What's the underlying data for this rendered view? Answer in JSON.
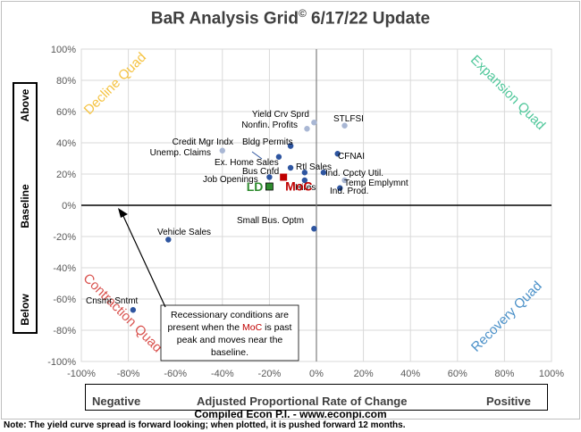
{
  "page": {
    "title_main": "BaR Analysis Grid",
    "title_symbol": "©",
    "title_date": " 6/17/22 Update",
    "y_above": "Above",
    "y_baseline": "Baseline",
    "y_below": "Below",
    "x_negative": "Negative",
    "x_center": "Adjusted Proportional Rate of Change",
    "x_positive": "Positive",
    "compiled": "Compiled Econ P.I. - www.econpi.com",
    "note": "Note: The yield curve spread is forward looking; when plotted, it is pushed forward 12 months."
  },
  "chart_data": {
    "type": "scatter",
    "title": "BaR Analysis Grid© 6/17/22 Update",
    "xlabel": "Adjusted Proportional Rate of Change",
    "ylabel": "Above / Baseline / Below",
    "xlim": [
      -100,
      100
    ],
    "ylim": [
      -100,
      100
    ],
    "x_ticks": [
      "-100%",
      "-80%",
      "-60%",
      "-40%",
      "-20%",
      "0%",
      "20%",
      "40%",
      "60%",
      "80%",
      "100%"
    ],
    "y_ticks": [
      "100%",
      "80%",
      "60%",
      "40%",
      "20%",
      "0%",
      "-20%",
      "-40%",
      "-60%",
      "-80%",
      "-100%"
    ],
    "grid": true,
    "quadrants": [
      {
        "label": "Decline Quad",
        "color": "#f5c342"
      },
      {
        "label": "Expansion Quad",
        "color": "#4fc79a"
      },
      {
        "label": "Contraction Quad",
        "color": "#d9534f"
      },
      {
        "label": "Recovery Quad",
        "color": "#4a90c8"
      }
    ],
    "points": [
      {
        "label": "Yield Crv Sprd",
        "x": -1,
        "y": 53,
        "color": "#a9b7d4"
      },
      {
        "label": "Nonfin. Profits",
        "x": -4,
        "y": 49,
        "color": "#a9b7d4"
      },
      {
        "label": "STLFSI",
        "x": 12,
        "y": 51,
        "color": "#a9b7d4"
      },
      {
        "label": "Credit Mgr Indx",
        "x": -11,
        "y": 38,
        "color": "#2e55a0"
      },
      {
        "label": "Bldg Permits",
        "x": -11,
        "y": 38,
        "color": "#2e55a0"
      },
      {
        "label": "Unemp. Claims",
        "x": -40,
        "y": 35,
        "color": "#a9b7d4"
      },
      {
        "label": "CFNAI",
        "x": 9,
        "y": 33,
        "color": "#2e55a0"
      },
      {
        "label": "Ex. Home Sales",
        "x": -16,
        "y": 31,
        "color": "#2e55a0"
      },
      {
        "label": "Bus Cnfd",
        "x": -11,
        "y": 24,
        "color": "#2e55a0"
      },
      {
        "label": "Rtl Sales",
        "x": -5,
        "y": 21,
        "color": "#2e55a0"
      },
      {
        "label": "Ind. Cpcty Util.",
        "x": 3,
        "y": 21,
        "color": "#2e55a0"
      },
      {
        "label": "Temp Emplymnt",
        "x": 12,
        "y": 16,
        "color": "#a9b7d4"
      },
      {
        "label": "Ind. Prod.",
        "x": 10,
        "y": 11,
        "color": "#2e55a0"
      },
      {
        "label": "Job Openings",
        "x": -20,
        "y": 18,
        "color": "#2e55a0"
      },
      {
        "label": "Hires",
        "x": -5,
        "y": 16,
        "color": "#2e55a0"
      },
      {
        "label": "Small Bus. Optm",
        "x": -1,
        "y": -15,
        "color": "#2e55a0"
      },
      {
        "label": "Vehicle Sales",
        "x": -63,
        "y": -22,
        "color": "#2e55a0"
      },
      {
        "label": "Cnsmr Sntmt",
        "x": -78,
        "y": -67,
        "color": "#2e55a0"
      }
    ],
    "highlighted": [
      {
        "label": "LD",
        "x": -20,
        "y": 12,
        "color": "#2e8b2e"
      },
      {
        "label": "MoC",
        "x": -14,
        "y": 18,
        "color": "#c00000"
      }
    ],
    "annotation_parts": [
      {
        "text": "Recessionary conditions are",
        "color": "#000000"
      },
      {
        "text": "present when the ",
        "color": "#000000"
      },
      {
        "text": "MoC",
        "color": "#c00000"
      },
      {
        "text": " is past",
        "color": "#000000"
      },
      {
        "text": "peak and moves near the",
        "color": "#000000"
      },
      {
        "text": "baseline.",
        "color": "#000000"
      }
    ]
  }
}
